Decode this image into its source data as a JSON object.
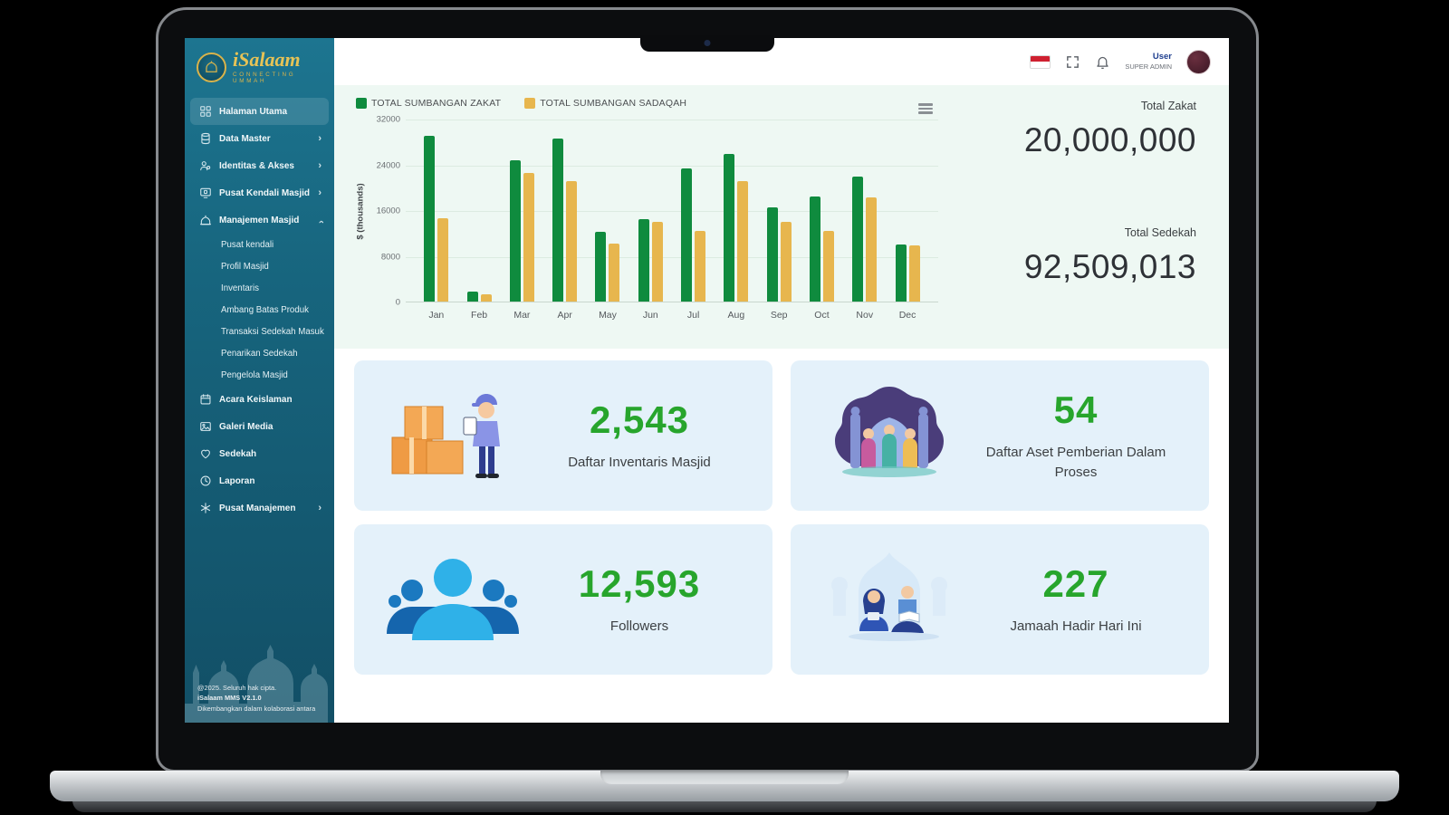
{
  "app": {
    "logo_title": "iSalaam",
    "logo_subtitle": "CONNECTING UMMAH"
  },
  "colors": {
    "stat_green": "#27a52c",
    "zakat_green": "#0f8b3e",
    "sadaqah_gold": "#e7b64e",
    "sidebar_teal": "#17657e",
    "card_blue": "#e4f1fa",
    "logo_gold": "#e7c356"
  },
  "sidebar": {
    "items": [
      {
        "label": "Halaman Utama",
        "icon": "grid-icon",
        "active": true
      },
      {
        "label": "Data Master",
        "icon": "database-icon",
        "chevron": "right"
      },
      {
        "label": "Identitas & Akses",
        "icon": "identity-icon",
        "chevron": "right"
      },
      {
        "label": "Pusat Kendali Masjid",
        "icon": "control-panel-icon",
        "chevron": "right"
      },
      {
        "label": "Manajemen Masjid",
        "icon": "mosque-icon",
        "chevron": "up",
        "children": [
          "Pusat kendali",
          "Profil Masjid",
          "Inventaris",
          "Ambang Batas Produk",
          "Transaksi Sedekah Masuk",
          "Penarikan Sedekah",
          "Pengelola Masjid"
        ]
      },
      {
        "label": "Acara Keislaman",
        "icon": "calendar-icon"
      },
      {
        "label": "Galeri Media",
        "icon": "image-icon"
      },
      {
        "label": "Sedekah",
        "icon": "heart-icon"
      },
      {
        "label": "Laporan",
        "icon": "clock-icon"
      },
      {
        "label": "Pusat Manajemen",
        "icon": "asterisk-icon",
        "chevron": "right"
      }
    ],
    "footer_lines": [
      "@2025. Seluruh hak cipta.",
      "iSalaam MMS V2.1.0",
      "Dikembangkan dalam kolaborasi antara"
    ]
  },
  "header": {
    "user_label": "User",
    "user_role": "SUPER ADMIN"
  },
  "chart_data": {
    "type": "bar",
    "title": "",
    "categories": [
      "Jan",
      "Feb",
      "Mar",
      "Apr",
      "May",
      "Jun",
      "Jul",
      "Aug",
      "Sep",
      "Oct",
      "Nov",
      "Dec"
    ],
    "series": [
      {
        "name": "TOTAL SUMBANGAN ZAKAT",
        "color": "#0f8b3e",
        "values": [
          29000,
          1800,
          24700,
          28500,
          12200,
          14400,
          23300,
          25800,
          16500,
          18300,
          21800,
          10000
        ]
      },
      {
        "name": "TOTAL SUMBANGAN SADAQAH",
        "color": "#e7b64e",
        "values": [
          14500,
          1200,
          22500,
          21000,
          10200,
          14000,
          12300,
          21000,
          14000,
          12300,
          18200,
          9800
        ]
      }
    ],
    "ylabel": "$ (thousands)",
    "ylim": [
      0,
      32000
    ],
    "yticks": [
      0,
      8000,
      16000,
      24000,
      32000
    ],
    "grid": true,
    "legend_position": "top"
  },
  "totals": {
    "zakat_label": "Total Zakat",
    "zakat_value": "20,000,000",
    "sedekah_label": "Total Sedekah",
    "sedekah_value": "92,509,013"
  },
  "cards": [
    {
      "value": "2,543",
      "label": "Daftar Inventaris Masjid",
      "illustration": "inventory-illustration"
    },
    {
      "value": "54",
      "label": "Daftar Aset Pemberian Dalam Proses",
      "illustration": "mosque-donation-illustration"
    },
    {
      "value": "12,593",
      "label": "Followers",
      "illustration": "followers-illustration"
    },
    {
      "value": "227",
      "label": "Jamaah Hadir Hari Ini",
      "illustration": "reading-illustration"
    }
  ]
}
